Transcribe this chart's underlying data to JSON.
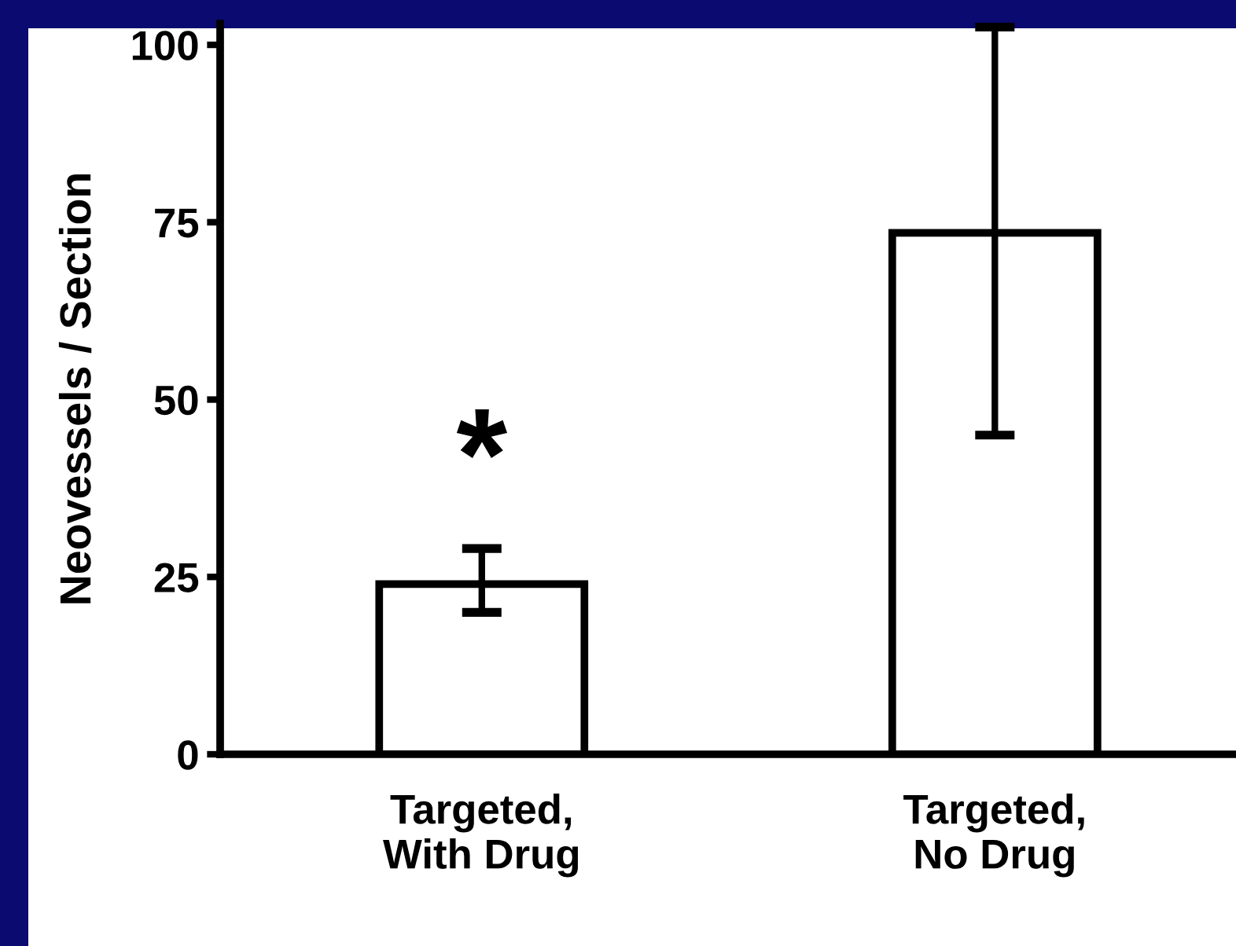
{
  "chart_data": {
    "type": "bar",
    "categories": [
      "Targeted,\nWith Drug",
      "Targeted,\nNo Drug"
    ],
    "values": [
      24,
      73.5
    ],
    "errors": [
      [
        20,
        29
      ],
      [
        45,
        102.5
      ]
    ],
    "color": "#ffffff",
    "ylabel": "Neovessels / Section",
    "ylim": [
      0,
      103
    ],
    "yticks": [
      0,
      25,
      50,
      75,
      100
    ],
    "grid": false,
    "legend": false,
    "annotations": [
      "*"
    ]
  }
}
